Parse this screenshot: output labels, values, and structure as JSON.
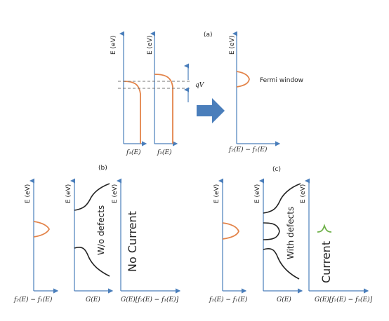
{
  "panel_a": {
    "label": "(a)",
    "axes": [
      {
        "y_label": "E (eV)",
        "x_label": "f₁(E)"
      },
      {
        "y_label": "E (eV)",
        "x_label": "f₂(E)"
      },
      {
        "y_label": "E (eV)",
        "x_label": "f₂(E) − f₁(E)"
      }
    ],
    "bias_label": "qV",
    "window_label": "Fermi window"
  },
  "panel_b": {
    "label": "(b)",
    "axes": [
      {
        "y_label": "E (eV)",
        "x_label": "f₂(E) − f₁(E)"
      },
      {
        "y_label": "E (eV)",
        "x_label": "G(E)",
        "note": "W/o defects"
      },
      {
        "y_label": "E (eV)",
        "x_label": "G(E)[f₂(E) − f₁(E)]",
        "note": "No Current"
      }
    ]
  },
  "panel_c": {
    "label": "(c)",
    "axes": [
      {
        "y_label": "E (eV)",
        "x_label": "f₂(E) − f₁(E)"
      },
      {
        "y_label": "E (eV)",
        "x_label": "G(E)",
        "note": "With defects"
      },
      {
        "y_label": "E (eV)",
        "x_label": "G(E)[f₂(E) − f₁(E)]",
        "note": "Current"
      }
    ]
  }
}
